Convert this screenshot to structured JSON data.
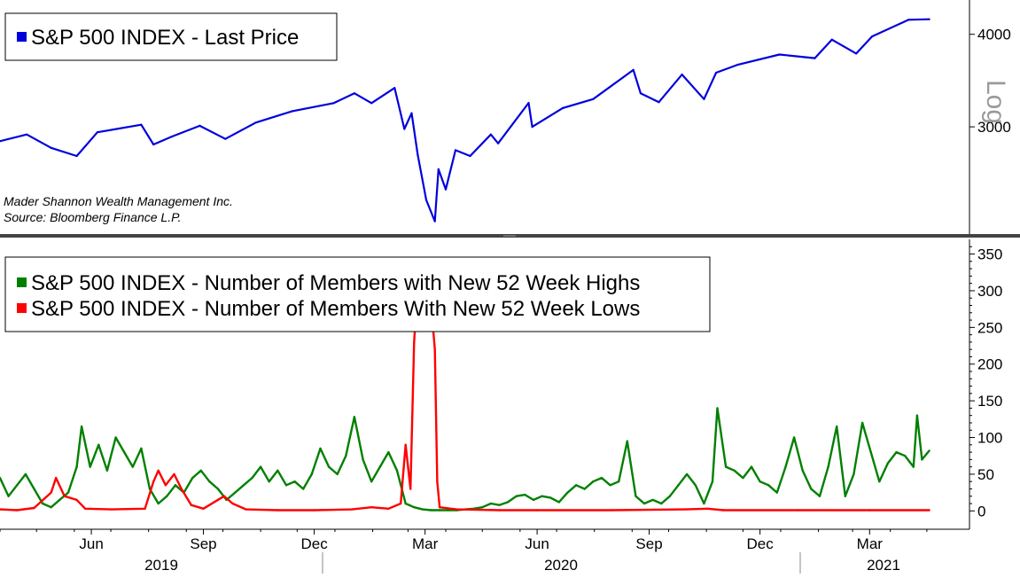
{
  "chart_data": [
    {
      "type": "line",
      "title": "S&P 500 INDEX - Last Price",
      "series": [
        {
          "name": "S&P 500 INDEX - Last Price",
          "color": "#0000dd",
          "points": [
            [
              "2019-04-01",
              2870
            ],
            [
              "2019-04-23",
              2930
            ],
            [
              "2019-05-13",
              2810
            ],
            [
              "2019-06-03",
              2740
            ],
            [
              "2019-06-20",
              2950
            ],
            [
              "2019-07-26",
              3020
            ],
            [
              "2019-08-05",
              2840
            ],
            [
              "2019-08-20",
              2910
            ],
            [
              "2019-09-12",
              3010
            ],
            [
              "2019-10-03",
              2890
            ],
            [
              "2019-10-28",
              3040
            ],
            [
              "2019-11-27",
              3150
            ],
            [
              "2019-12-31",
              3230
            ],
            [
              "2020-01-17",
              3330
            ],
            [
              "2020-01-31",
              3230
            ],
            [
              "2020-02-19",
              3386
            ],
            [
              "2020-02-27",
              2980
            ],
            [
              "2020-03-04",
              3130
            ],
            [
              "2020-03-09",
              2750
            ],
            [
              "2020-03-16",
              2390
            ],
            [
              "2020-03-23",
              2237
            ],
            [
              "2020-03-26",
              2630
            ],
            [
              "2020-04-01",
              2470
            ],
            [
              "2020-04-09",
              2790
            ],
            [
              "2020-04-21",
              2740
            ],
            [
              "2020-05-08",
              2930
            ],
            [
              "2020-05-14",
              2850
            ],
            [
              "2020-06-08",
              3232
            ],
            [
              "2020-06-11",
              3000
            ],
            [
              "2020-07-06",
              3180
            ],
            [
              "2020-07-31",
              3270
            ],
            [
              "2020-09-02",
              3580
            ],
            [
              "2020-09-08",
              3330
            ],
            [
              "2020-09-23",
              3240
            ],
            [
              "2020-10-12",
              3530
            ],
            [
              "2020-10-30",
              3270
            ],
            [
              "2020-11-09",
              3550
            ],
            [
              "2020-11-27",
              3640
            ],
            [
              "2020-12-31",
              3756
            ],
            [
              "2021-01-29",
              3714
            ],
            [
              "2021-02-12",
              3934
            ],
            [
              "2021-03-04",
              3768
            ],
            [
              "2021-03-17",
              3974
            ],
            [
              "2021-04-16",
              4185
            ],
            [
              "2021-05-03",
              4192
            ]
          ]
        }
      ],
      "x_ticks": [
        "Jun",
        "Sep",
        "Dec",
        "Mar",
        "Jun",
        "Sep",
        "Dec",
        "Mar"
      ],
      "x_years": [
        "2019",
        "2020",
        "2021"
      ],
      "y_ticks": [
        3000,
        4000
      ],
      "y_tick_labels": [
        "3000",
        "4000"
      ],
      "ylim": [
        2150,
        4450
      ],
      "scale": "log",
      "scale_label": "Log",
      "notes": [
        "Mader Shannon Wealth Management Inc.",
        "Source: Bloomberg Finance L.P."
      ]
    },
    {
      "type": "line",
      "series": [
        {
          "name": "S&P 500 INDEX - Number of Members with New 52 Week Highs",
          "color": "#008000",
          "points": [
            [
              "2019-04-01",
              45
            ],
            [
              "2019-04-08",
              20
            ],
            [
              "2019-04-15",
              35
            ],
            [
              "2019-04-22",
              50
            ],
            [
              "2019-04-29",
              30
            ],
            [
              "2019-05-06",
              10
            ],
            [
              "2019-05-13",
              5
            ],
            [
              "2019-05-20",
              15
            ],
            [
              "2019-05-27",
              25
            ],
            [
              "2019-06-03",
              60
            ],
            [
              "2019-06-07",
              115
            ],
            [
              "2019-06-14",
              60
            ],
            [
              "2019-06-21",
              90
            ],
            [
              "2019-06-28",
              55
            ],
            [
              "2019-07-05",
              100
            ],
            [
              "2019-07-12",
              80
            ],
            [
              "2019-07-19",
              60
            ],
            [
              "2019-07-26",
              85
            ],
            [
              "2019-08-02",
              30
            ],
            [
              "2019-08-09",
              10
            ],
            [
              "2019-08-16",
              20
            ],
            [
              "2019-08-23",
              35
            ],
            [
              "2019-08-30",
              25
            ],
            [
              "2019-09-06",
              45
            ],
            [
              "2019-09-13",
              55
            ],
            [
              "2019-09-20",
              40
            ],
            [
              "2019-09-27",
              30
            ],
            [
              "2019-10-04",
              15
            ],
            [
              "2019-10-11",
              25
            ],
            [
              "2019-10-18",
              35
            ],
            [
              "2019-10-25",
              45
            ],
            [
              "2019-11-01",
              60
            ],
            [
              "2019-11-08",
              40
            ],
            [
              "2019-11-15",
              55
            ],
            [
              "2019-11-22",
              35
            ],
            [
              "2019-11-29",
              40
            ],
            [
              "2019-12-06",
              30
            ],
            [
              "2019-12-13",
              50
            ],
            [
              "2019-12-20",
              85
            ],
            [
              "2019-12-27",
              60
            ],
            [
              "2020-01-03",
              50
            ],
            [
              "2020-01-10",
              75
            ],
            [
              "2020-01-17",
              128
            ],
            [
              "2020-01-24",
              70
            ],
            [
              "2020-01-31",
              40
            ],
            [
              "2020-02-07",
              60
            ],
            [
              "2020-02-14",
              80
            ],
            [
              "2020-02-21",
              55
            ],
            [
              "2020-02-28",
              10
            ],
            [
              "2020-03-06",
              5
            ],
            [
              "2020-03-13",
              2
            ],
            [
              "2020-03-20",
              1
            ],
            [
              "2020-03-27",
              1
            ],
            [
              "2020-04-03",
              1
            ],
            [
              "2020-04-10",
              1
            ],
            [
              "2020-04-17",
              2
            ],
            [
              "2020-04-24",
              3
            ],
            [
              "2020-05-01",
              5
            ],
            [
              "2020-05-08",
              10
            ],
            [
              "2020-05-15",
              8
            ],
            [
              "2020-05-22",
              12
            ],
            [
              "2020-05-29",
              20
            ],
            [
              "2020-06-05",
              22
            ],
            [
              "2020-06-12",
              15
            ],
            [
              "2020-06-19",
              20
            ],
            [
              "2020-06-26",
              18
            ],
            [
              "2020-07-03",
              12
            ],
            [
              "2020-07-10",
              25
            ],
            [
              "2020-07-17",
              35
            ],
            [
              "2020-07-24",
              30
            ],
            [
              "2020-07-31",
              40
            ],
            [
              "2020-08-07",
              45
            ],
            [
              "2020-08-14",
              35
            ],
            [
              "2020-08-21",
              40
            ],
            [
              "2020-08-28",
              95
            ],
            [
              "2020-09-04",
              20
            ],
            [
              "2020-09-11",
              10
            ],
            [
              "2020-09-18",
              15
            ],
            [
              "2020-09-25",
              10
            ],
            [
              "2020-10-02",
              20
            ],
            [
              "2020-10-09",
              35
            ],
            [
              "2020-10-16",
              50
            ],
            [
              "2020-10-23",
              35
            ],
            [
              "2020-10-30",
              10
            ],
            [
              "2020-11-06",
              40
            ],
            [
              "2020-11-10",
              140
            ],
            [
              "2020-11-17",
              60
            ],
            [
              "2020-11-24",
              55
            ],
            [
              "2020-12-01",
              45
            ],
            [
              "2020-12-08",
              60
            ],
            [
              "2020-12-15",
              40
            ],
            [
              "2020-12-22",
              35
            ],
            [
              "2020-12-29",
              25
            ],
            [
              "2021-01-05",
              60
            ],
            [
              "2021-01-12",
              100
            ],
            [
              "2021-01-19",
              55
            ],
            [
              "2021-01-26",
              30
            ],
            [
              "2021-02-02",
              20
            ],
            [
              "2021-02-09",
              60
            ],
            [
              "2021-02-16",
              115
            ],
            [
              "2021-02-23",
              20
            ],
            [
              "2021-03-02",
              50
            ],
            [
              "2021-03-09",
              120
            ],
            [
              "2021-03-16",
              80
            ],
            [
              "2021-03-23",
              40
            ],
            [
              "2021-03-30",
              65
            ],
            [
              "2021-04-06",
              80
            ],
            [
              "2021-04-13",
              75
            ],
            [
              "2021-04-20",
              60
            ],
            [
              "2021-04-23",
              130
            ],
            [
              "2021-04-27",
              70
            ],
            [
              "2021-05-03",
              82
            ]
          ]
        },
        {
          "name": "S&P 500 INDEX - Number of Members With New 52 Week Lows",
          "color": "#ff0000",
          "points": [
            [
              "2019-04-01",
              2
            ],
            [
              "2019-04-15",
              1
            ],
            [
              "2019-04-29",
              4
            ],
            [
              "2019-05-13",
              25
            ],
            [
              "2019-05-17",
              45
            ],
            [
              "2019-05-24",
              20
            ],
            [
              "2019-06-03",
              15
            ],
            [
              "2019-06-10",
              3
            ],
            [
              "2019-07-01",
              2
            ],
            [
              "2019-07-29",
              3
            ],
            [
              "2019-08-05",
              40
            ],
            [
              "2019-08-09",
              55
            ],
            [
              "2019-08-15",
              35
            ],
            [
              "2019-08-22",
              50
            ],
            [
              "2019-08-28",
              30
            ],
            [
              "2019-09-05",
              8
            ],
            [
              "2019-09-15",
              3
            ],
            [
              "2019-10-02",
              20
            ],
            [
              "2019-10-09",
              10
            ],
            [
              "2019-10-20",
              2
            ],
            [
              "2019-11-15",
              1
            ],
            [
              "2019-12-15",
              1
            ],
            [
              "2020-01-15",
              2
            ],
            [
              "2020-01-31",
              5
            ],
            [
              "2020-02-14",
              3
            ],
            [
              "2020-02-24",
              10
            ],
            [
              "2020-02-28",
              90
            ],
            [
              "2020-03-03",
              30
            ],
            [
              "2020-03-06",
              230
            ],
            [
              "2020-03-09",
              310
            ],
            [
              "2020-03-12",
              345
            ],
            [
              "2020-03-16",
              340
            ],
            [
              "2020-03-19",
              300
            ],
            [
              "2020-03-23",
              220
            ],
            [
              "2020-03-25",
              40
            ],
            [
              "2020-03-27",
              5
            ],
            [
              "2020-04-10",
              2
            ],
            [
              "2020-05-15",
              1
            ],
            [
              "2020-06-15",
              1
            ],
            [
              "2020-08-15",
              1
            ],
            [
              "2020-10-15",
              2
            ],
            [
              "2020-11-02",
              3
            ],
            [
              "2020-11-15",
              1
            ],
            [
              "2021-01-15",
              1
            ],
            [
              "2021-03-15",
              1
            ],
            [
              "2021-05-03",
              1
            ]
          ]
        }
      ],
      "x_ticks": [
        "Jun",
        "Sep",
        "Dec",
        "Mar",
        "Jun",
        "Sep",
        "Dec",
        "Mar"
      ],
      "x_years": [
        "2019",
        "2020",
        "2021"
      ],
      "y_ticks": [
        0,
        50,
        100,
        150,
        200,
        250,
        300,
        350
      ],
      "y_tick_labels": [
        "0",
        "50",
        "100",
        "150",
        "200",
        "250",
        "300",
        "350"
      ],
      "ylim": [
        -25,
        370
      ]
    }
  ],
  "top_legend": {
    "label": "S&P 500 INDEX - Last Price",
    "color": "#0000dd"
  },
  "bottom_legend": {
    "highs_label": "S&P 500 INDEX - Number of Members with New 52 Week Highs",
    "lows_label": "S&P 500 INDEX - Number of Members With New 52 Week Lows",
    "highs_color": "#008000",
    "lows_color": "#ff0000"
  },
  "credit": {
    "line1": "Mader Shannon Wealth Management Inc.",
    "line2": "Source: Bloomberg Finance L.P."
  },
  "scale_label": "Log"
}
